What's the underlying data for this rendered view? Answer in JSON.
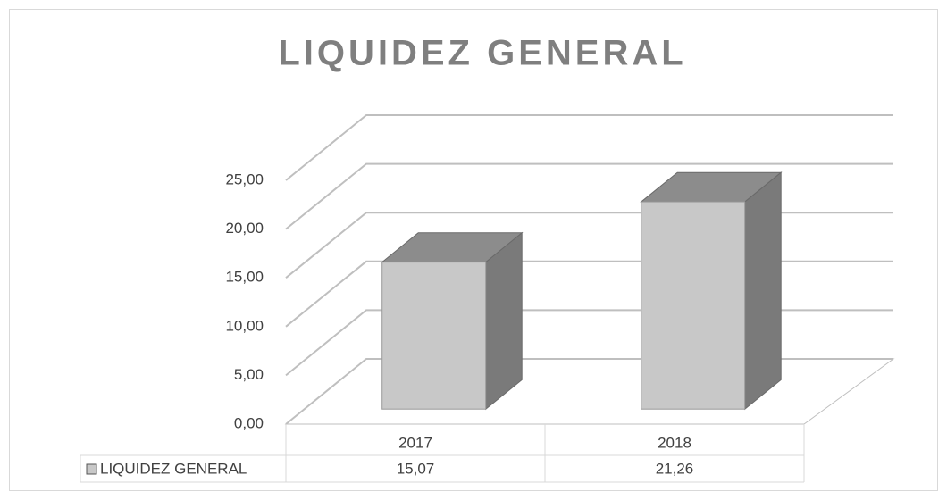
{
  "chart_data": {
    "type": "bar3d",
    "title": "LIQUIDEZ GENERAL",
    "categories": [
      "2017",
      "2018"
    ],
    "series": [
      {
        "name": "LIQUIDEZ GENERAL",
        "color": "#c8c8c8",
        "values": [
          15.07,
          21.26
        ],
        "value_labels": [
          "15,07",
          "21,26"
        ]
      }
    ],
    "ylim": [
      0,
      25
    ],
    "yticks": [
      {
        "value": 0,
        "label": "0,00"
      },
      {
        "value": 5,
        "label": "5,00"
      },
      {
        "value": 10,
        "label": "10,00"
      },
      {
        "value": 15,
        "label": "15,00"
      },
      {
        "value": 20,
        "label": "20,00"
      },
      {
        "value": 25,
        "label": "25,00"
      }
    ],
    "grid": true,
    "data_table": true
  }
}
